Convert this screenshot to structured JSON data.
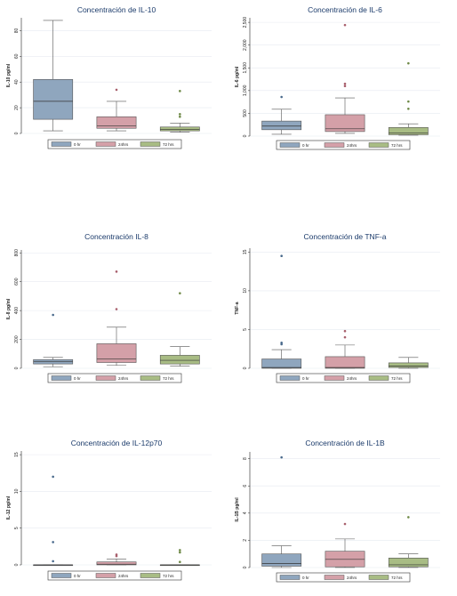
{
  "colors": {
    "hr0": "#8fa6be",
    "hr24": "#d4a0a8",
    "hr72": "#a8bc84",
    "grid": "#e6eaf0"
  },
  "legend": [
    "0 hr",
    "24hrs",
    "72 hrs"
  ],
  "chart_data": [
    {
      "type": "box",
      "title": "Concentración de IL-10",
      "ylabel": "IL-10 pg/ml",
      "ylim": [
        0,
        90
      ],
      "yticks": [
        0,
        20,
        40,
        60,
        80
      ],
      "ytick_labels": [
        "0",
        "20",
        "40",
        "60",
        "80"
      ],
      "categories": [
        "0 hr",
        "24hrs",
        "72 hrs"
      ],
      "series": [
        {
          "name": "0 hr",
          "min": 2,
          "q1": 11,
          "median": 25,
          "q3": 42,
          "max": 88,
          "outliers": []
        },
        {
          "name": "24hrs",
          "min": 2,
          "q1": 4,
          "median": 6,
          "q3": 13,
          "max": 25,
          "outliers": [
            34
          ]
        },
        {
          "name": "72 hrs",
          "min": 1,
          "q1": 2,
          "median": 3,
          "q3": 5,
          "max": 8,
          "outliers": [
            13,
            15,
            33
          ]
        }
      ]
    },
    {
      "type": "box",
      "title": "Concentración de IL-6",
      "ylabel": "IL-6 pg/ml",
      "ylim": [
        0,
        2600
      ],
      "yticks": [
        0,
        500,
        1000,
        1500,
        2000,
        2500
      ],
      "ytick_labels": [
        "0",
        "500",
        "1,000",
        "1,500",
        "2,000",
        "2,500"
      ],
      "categories": [
        "0 hr",
        "24hrs",
        "72 hrs"
      ],
      "series": [
        {
          "name": "0 hr",
          "min": 40,
          "q1": 140,
          "median": 220,
          "q3": 330,
          "max": 590,
          "outliers": [
            860
          ]
        },
        {
          "name": "24hrs",
          "min": 60,
          "q1": 100,
          "median": 160,
          "q3": 470,
          "max": 840,
          "outliers": [
            1100,
            1150,
            2440
          ]
        },
        {
          "name": "72 hrs",
          "min": 20,
          "q1": 30,
          "median": 70,
          "q3": 190,
          "max": 270,
          "outliers": [
            600,
            760,
            1600
          ]
        }
      ]
    },
    {
      "type": "box",
      "title": "Concentración IL-8",
      "ylabel": "IL-8 pg/ml",
      "ylim": [
        0,
        820
      ],
      "yticks": [
        0,
        200,
        400,
        600,
        800
      ],
      "ytick_labels": [
        "0",
        "200",
        "400",
        "600",
        "800"
      ],
      "categories": [
        "0 hr",
        "24hrs",
        "72 hrs"
      ],
      "series": [
        {
          "name": "0 hr",
          "min": 10,
          "q1": 30,
          "median": 45,
          "q3": 60,
          "max": 75,
          "outliers": [
            370
          ]
        },
        {
          "name": "24hrs",
          "min": 20,
          "q1": 40,
          "median": 65,
          "q3": 170,
          "max": 285,
          "outliers": [
            410,
            670
          ]
        },
        {
          "name": "72 hrs",
          "min": 15,
          "q1": 30,
          "median": 55,
          "q3": 90,
          "max": 150,
          "outliers": [
            520
          ]
        }
      ]
    },
    {
      "type": "box",
      "title": "Concentración de TNF-a",
      "ylabel": "TNF-a",
      "ylim": [
        0,
        15.5
      ],
      "yticks": [
        0,
        5,
        10,
        15
      ],
      "ytick_labels": [
        "0",
        "5",
        "10",
        "15"
      ],
      "categories": [
        "0 hr",
        "24hrs",
        "72 hrs"
      ],
      "series": [
        {
          "name": "0 hr",
          "min": 0,
          "q1": 0,
          "median": 0.1,
          "q3": 1.2,
          "max": 2.4,
          "outliers": [
            3.1,
            3.3,
            14.5
          ]
        },
        {
          "name": "24hrs",
          "min": 0,
          "q1": 0,
          "median": 0.1,
          "q3": 1.5,
          "max": 3.0,
          "outliers": [
            4.0,
            4.8
          ]
        },
        {
          "name": "72 hrs",
          "min": 0,
          "q1": 0.1,
          "median": 0.3,
          "q3": 0.7,
          "max": 1.4,
          "outliers": []
        }
      ]
    },
    {
      "type": "box",
      "title": "Concentración de IL-12p70",
      "ylabel": "IL-12 pg/ml",
      "ylim": [
        0,
        15.5
      ],
      "yticks": [
        0,
        5,
        10,
        15
      ],
      "ytick_labels": [
        "0",
        "5",
        "10",
        "15"
      ],
      "categories": [
        "0 hr",
        "24hrs",
        "72 hrs"
      ],
      "series": [
        {
          "name": "0 hr",
          "min": 0,
          "q1": 0,
          "median": 0,
          "q3": 0,
          "max": 0,
          "outliers": [
            0.5,
            3.1,
            12.0
          ]
        },
        {
          "name": "24hrs",
          "min": 0,
          "q1": 0,
          "median": 0.1,
          "q3": 0.4,
          "max": 0.8,
          "outliers": [
            1.2,
            1.4
          ]
        },
        {
          "name": "72 hrs",
          "min": 0,
          "q1": 0,
          "median": 0,
          "q3": 0,
          "max": 0,
          "outliers": [
            0.4,
            1.7,
            2.0
          ]
        }
      ]
    },
    {
      "type": "box",
      "title": "Concentración de IL-1B",
      "ylabel": "IL-1B pg/ml",
      "ylim": [
        0,
        8.5
      ],
      "yticks": [
        0,
        2,
        4,
        6,
        8
      ],
      "ytick_labels": [
        "0",
        "2",
        "4",
        "6",
        "8"
      ],
      "categories": [
        "0 hr",
        "24hrs",
        "72 hrs"
      ],
      "series": [
        {
          "name": "0 hr",
          "min": 0,
          "q1": 0.1,
          "median": 0.3,
          "q3": 1.0,
          "max": 1.6,
          "outliers": [
            8.1
          ]
        },
        {
          "name": "24hrs",
          "min": 0,
          "q1": 0.05,
          "median": 0.6,
          "q3": 1.2,
          "max": 2.1,
          "outliers": [
            3.2
          ]
        },
        {
          "name": "72 hrs",
          "min": 0,
          "q1": 0.05,
          "median": 0.2,
          "q3": 0.7,
          "max": 1.0,
          "outliers": [
            3.7
          ]
        }
      ]
    }
  ]
}
